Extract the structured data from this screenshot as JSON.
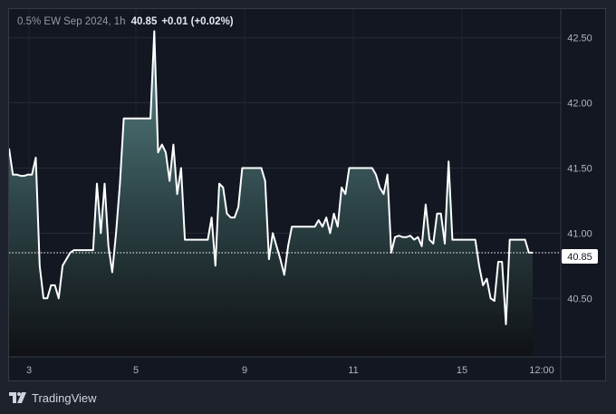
{
  "legend": {
    "symbol": "0.5% EW Sep 2024, 1h",
    "last_value": "40.85",
    "change": "+0.01 (+0.02%)"
  },
  "price_label": "40.85",
  "footer": {
    "brand": "TradingView",
    "logo_icon": "tradingview-logo-icon"
  },
  "colors": {
    "background": "#131722",
    "line": "#ffffff",
    "area_top": "#5d8a8c",
    "grid": "#2a2e39"
  },
  "chart_data": {
    "type": "area",
    "title": "",
    "xlabel": "",
    "ylabel": "",
    "ylim": [
      40.05,
      42.72
    ],
    "x_ticks": [
      "3",
      "5",
      "9",
      "11",
      "15",
      "12:00"
    ],
    "y_ticks": [
      "40.50",
      "41.00",
      "41.50",
      "42.00",
      "42.50"
    ],
    "grid": true,
    "last_price": 40.85,
    "series": [
      {
        "values": [
          41.65,
          41.45,
          41.45,
          41.44,
          41.44,
          41.45,
          41.45,
          41.58,
          40.75,
          40.5,
          40.5,
          40.6,
          40.6,
          40.5,
          40.75,
          40.8,
          40.85,
          40.87,
          40.87,
          40.87,
          40.87,
          40.87,
          40.87,
          41.38,
          41.0,
          41.38,
          40.9,
          40.7,
          41.0,
          41.38,
          41.88,
          41.88,
          41.88,
          41.88,
          41.88,
          41.88,
          41.88,
          41.88,
          42.55,
          41.62,
          41.68,
          41.62,
          41.4,
          41.68,
          41.3,
          41.5,
          40.95,
          40.95,
          40.95,
          40.95,
          40.95,
          40.95,
          40.95,
          41.12,
          40.75,
          41.38,
          41.35,
          41.15,
          41.12,
          41.12,
          41.2,
          41.5,
          41.5,
          41.5,
          41.5,
          41.5,
          41.5,
          41.4,
          40.8,
          41.0,
          40.9,
          40.8,
          40.68,
          40.9,
          41.05,
          41.05,
          41.05,
          41.05,
          41.05,
          41.05,
          41.05,
          41.1,
          41.05,
          41.12,
          41.0,
          41.15,
          41.05,
          41.35,
          41.3,
          41.5,
          41.5,
          41.5,
          41.5,
          41.5,
          41.5,
          41.5,
          41.45,
          41.35,
          41.3,
          41.45,
          40.85,
          40.97,
          40.98,
          40.97,
          40.97,
          40.98,
          40.95,
          40.97,
          40.9,
          41.22,
          40.95,
          40.92,
          41.15,
          41.15,
          40.92,
          41.55,
          40.95,
          40.95,
          40.95,
          40.95,
          40.95,
          40.95,
          40.95,
          40.75,
          40.6,
          40.65,
          40.5,
          40.48,
          40.78,
          40.78,
          40.3,
          40.95,
          40.95,
          40.95,
          40.95,
          40.95,
          40.85,
          40.85
        ]
      }
    ]
  }
}
